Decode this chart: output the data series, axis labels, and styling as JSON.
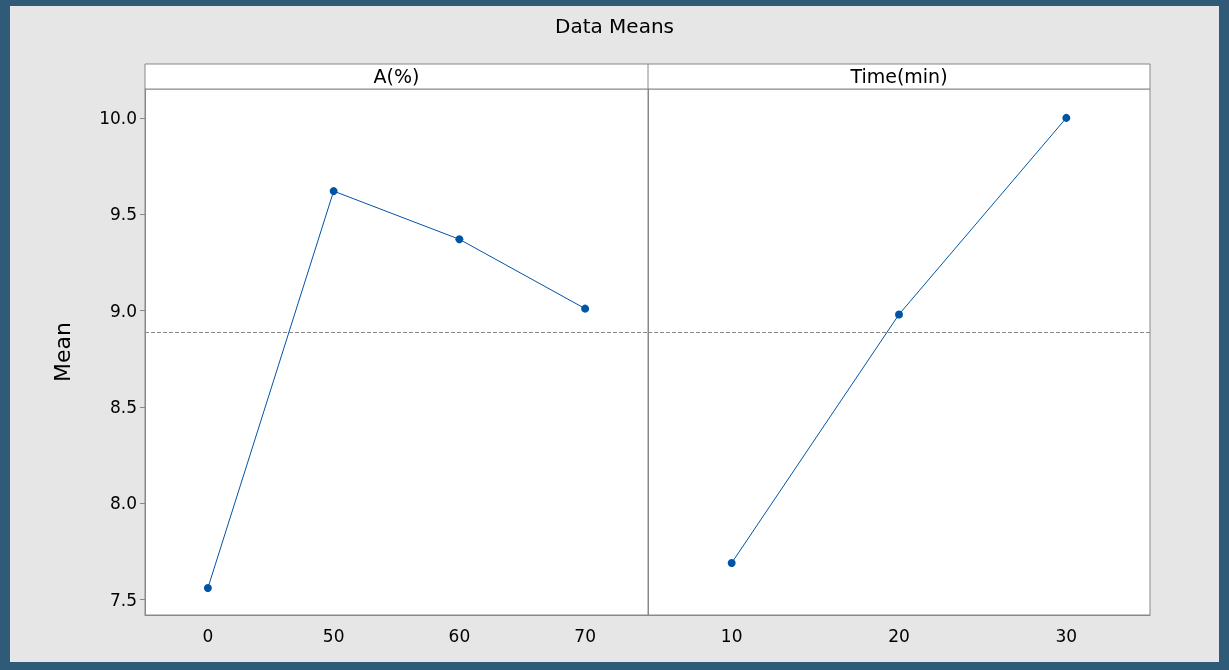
{
  "chart_data": [
    {
      "type": "line",
      "title": "A(%)",
      "ylabel": "Mean",
      "annotations": [
        "Data Means"
      ],
      "categories": [
        "0",
        "50",
        "60",
        "70"
      ],
      "series": [
        {
          "color": "#0054a6",
          "values": [
            7.56,
            9.62,
            9.37,
            9.01
          ]
        }
      ],
      "ylim": [
        7.42,
        10.15
      ],
      "yticks": [
        {
          "value": 7.5,
          "label": "7.5"
        },
        {
          "value": 8,
          "label": "8.0"
        },
        {
          "value": 8.5,
          "label": "8.5"
        },
        {
          "value": 9,
          "label": "9.0"
        },
        {
          "value": 9.5,
          "label": "9.5"
        },
        {
          "value": 10,
          "label": "10.0"
        }
      ],
      "ref_lines": [
        {
          "axis": "y",
          "value": 8.89,
          "color": "#888888",
          "line_style": "dashed"
        }
      ],
      "marker": "circle",
      "grid": false
    },
    {
      "type": "line",
      "title": "Time(min)",
      "categories": [
        "10",
        "20",
        "30"
      ],
      "series": [
        {
          "color": "#0054a6",
          "values": [
            7.69,
            8.98,
            10.0
          ]
        }
      ],
      "ylim": [
        7.42,
        10.15
      ],
      "ref_lines": [
        {
          "axis": "y",
          "value": 8.89,
          "color": "#888888",
          "line_style": "dashed"
        }
      ],
      "marker": "circle",
      "grid": false,
      "tick_labels": "x"
    }
  ]
}
